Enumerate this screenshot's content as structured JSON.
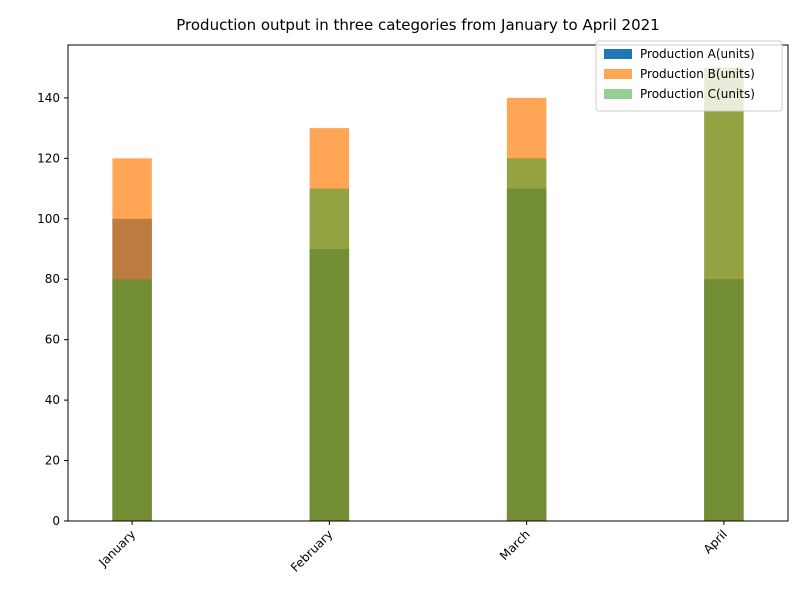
{
  "chart_data": {
    "type": "bar",
    "title": "Production output in three categories from January to April 2021",
    "xlabel": "",
    "ylabel": "",
    "categories": [
      "January",
      "February",
      "March",
      "April"
    ],
    "series": [
      {
        "name": "Production A(units)",
        "values": [
          100,
          90,
          110,
          80
        ],
        "color": "#1f77b4",
        "opacity": 1.0
      },
      {
        "name": "Production B(units)",
        "values": [
          120,
          130,
          140,
          150
        ],
        "color": "#ff7f0e",
        "opacity": 0.7
      },
      {
        "name": "Production C(units)",
        "values": [
          80,
          110,
          120,
          150
        ],
        "color": "#2ca02c",
        "opacity": 0.5
      }
    ],
    "ylim": [
      0,
      157.5
    ],
    "yticks": [
      0,
      20,
      40,
      60,
      80,
      100,
      120,
      140
    ],
    "grid": false,
    "legend_position": "top-right",
    "bars_overlapping": true,
    "xtick_rotation": 45
  }
}
